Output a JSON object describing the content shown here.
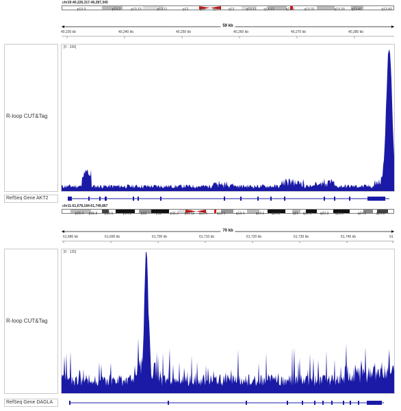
{
  "colors": {
    "track": "#1a1aa6",
    "centromere": "#d42020",
    "highlight": "#e01818"
  },
  "panels": [
    {
      "locus": "chr19:40,226,317-40,287,345",
      "bands": [
        "p13.3",
        "p13.2",
        "p13.13",
        "p13.11",
        "p12",
        "p11",
        "q11",
        "q12",
        "q13.11",
        "q13.12",
        "q13.2",
        "q13.31",
        "q13.33",
        "q13.41",
        "q13.43"
      ],
      "scale": "59 kb",
      "ticks": [
        "40,230 kb",
        "40,240 kb",
        "40,250 kb",
        "40,260 kb",
        "40,270 kb",
        "40,280 kb"
      ],
      "range": "[0 - 336]",
      "track_label": "R-loop CUT&Tag",
      "gene_label": "RefSeq Gene AKT2"
    },
    {
      "locus": "chr11:61,678,184-61,749,867",
      "bands": [
        "p15.4",
        "p15.3",
        "p15.1",
        "p14.2",
        "p13",
        "p12",
        "p11.2",
        "p11.11",
        "q12.1",
        "q13.1",
        "q13.4",
        "q14.1",
        "q14.2",
        "q21",
        "q22.1",
        "q22.3",
        "q23.2",
        "q24.1",
        "q24.3"
      ],
      "scale": "70 kb",
      "ticks": [
        "61,680 kb",
        "61,690 kb",
        "61,700 kb",
        "61,710 kb",
        "61,720 kb",
        "61,730 kb",
        "61,740 kb",
        "61"
      ],
      "range": "[0 - 135]",
      "track_label": "R-loop CUT&Tag",
      "gene_label": "RefSeq Gene DAGLA"
    }
  ]
}
